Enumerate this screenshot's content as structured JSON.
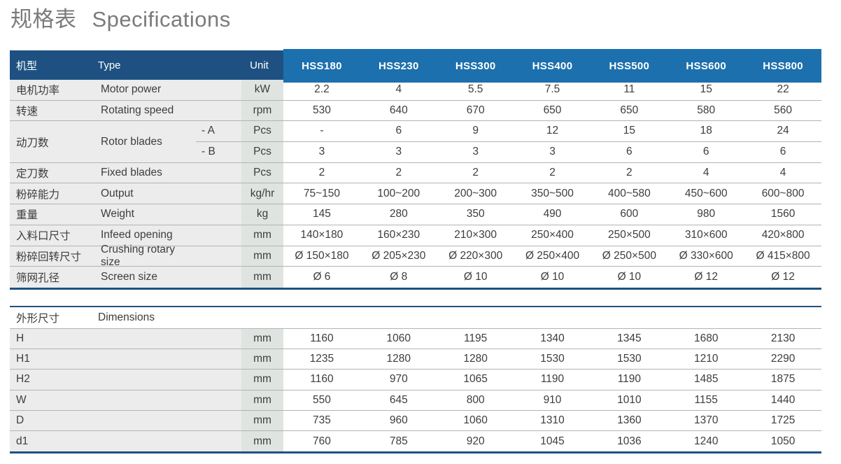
{
  "title": {
    "zh": "规格表",
    "en": "Specifications"
  },
  "colors": {
    "header_navy": "#1e5181",
    "header_blue": "#1c70ad",
    "label_bg": "#ececec",
    "unit_bg": "#dfe4e1",
    "divider": "#b3b3b3",
    "text": "#3d3d3d",
    "title_text": "#7b7b7b"
  },
  "table1": {
    "header": {
      "model_col": "机型",
      "type_label": "Type",
      "unit_label": "Unit",
      "models": [
        "HSS180",
        "HSS230",
        "HSS300",
        "HSS400",
        "HSS500",
        "HSS600",
        "HSS800"
      ]
    },
    "rows": [
      {
        "zh": "电机功率",
        "en": "Motor power",
        "sub": "",
        "unit": "kW",
        "values": [
          "2.2",
          "4",
          "5.5",
          "7.5",
          "11",
          "15",
          "22"
        ]
      },
      {
        "zh": "转速",
        "en": "Rotating speed",
        "sub": "",
        "unit": "rpm",
        "values": [
          "530",
          "640",
          "670",
          "650",
          "650",
          "580",
          "560"
        ]
      },
      {
        "zh": "动刀数",
        "en": "Rotor blades",
        "group": [
          {
            "sub": "- A",
            "unit": "Pcs",
            "values": [
              "-",
              "6",
              "9",
              "12",
              "15",
              "18",
              "24"
            ]
          },
          {
            "sub": "- B",
            "unit": "Pcs",
            "values": [
              "3",
              "3",
              "3",
              "3",
              "6",
              "6",
              "6"
            ]
          }
        ]
      },
      {
        "zh": "定刀数",
        "en": "Fixed blades",
        "sub": "",
        "unit": "Pcs",
        "values": [
          "2",
          "2",
          "2",
          "2",
          "2",
          "4",
          "4"
        ]
      },
      {
        "zh": "粉碎能力",
        "en": "Output",
        "sub": "",
        "unit": "kg/hr",
        "values": [
          "75~150",
          "100~200",
          "200~300",
          "350~500",
          "400~580",
          "450~600",
          "600~800"
        ]
      },
      {
        "zh": "重量",
        "en": "Weight",
        "sub": "",
        "unit": "kg",
        "values": [
          "145",
          "280",
          "350",
          "490",
          "600",
          "980",
          "1560"
        ]
      },
      {
        "zh": "入料口尺寸",
        "en": "Infeed opening",
        "sub": "",
        "unit": "mm",
        "values": [
          "140×180",
          "160×230",
          "210×300",
          "250×400",
          "250×500",
          "310×600",
          "420×800"
        ]
      },
      {
        "zh": "粉碎回转尺寸",
        "en": "Crushing rotary size",
        "sub": "",
        "unit": "mm",
        "values": [
          "Ø 150×180",
          "Ø 205×230",
          "Ø 220×300",
          "Ø 250×400",
          "Ø 250×500",
          "Ø 330×600",
          "Ø 415×800"
        ]
      },
      {
        "zh": "筛网孔径",
        "en": "Screen size",
        "sub": "",
        "unit": "mm",
        "values": [
          "Ø 6",
          "Ø 8",
          "Ø 10",
          "Ø 10",
          "Ø 10",
          "Ø 12",
          "Ø 12"
        ]
      }
    ]
  },
  "table2": {
    "header": {
      "zh": "外形尺寸",
      "en": "Dimensions"
    },
    "rows": [
      {
        "label": "H",
        "unit": "mm",
        "values": [
          "1160",
          "1060",
          "1195",
          "1340",
          "1345",
          "1680",
          "2130"
        ]
      },
      {
        "label": "H1",
        "unit": "mm",
        "values": [
          "1235",
          "1280",
          "1280",
          "1530",
          "1530",
          "1210",
          "2290"
        ]
      },
      {
        "label": "H2",
        "unit": "mm",
        "values": [
          "1160",
          "970",
          "1065",
          "1190",
          "1190",
          "1485",
          "1875"
        ]
      },
      {
        "label": "W",
        "unit": "mm",
        "values": [
          "550",
          "645",
          "800",
          "910",
          "1010",
          "1155",
          "1440"
        ]
      },
      {
        "label": "D",
        "unit": "mm",
        "values": [
          "735",
          "960",
          "1060",
          "1310",
          "1360",
          "1370",
          "1725"
        ]
      },
      {
        "label": "d1",
        "unit": "mm",
        "values": [
          "760",
          "785",
          "920",
          "1045",
          "1036",
          "1240",
          "1050"
        ]
      }
    ]
  }
}
